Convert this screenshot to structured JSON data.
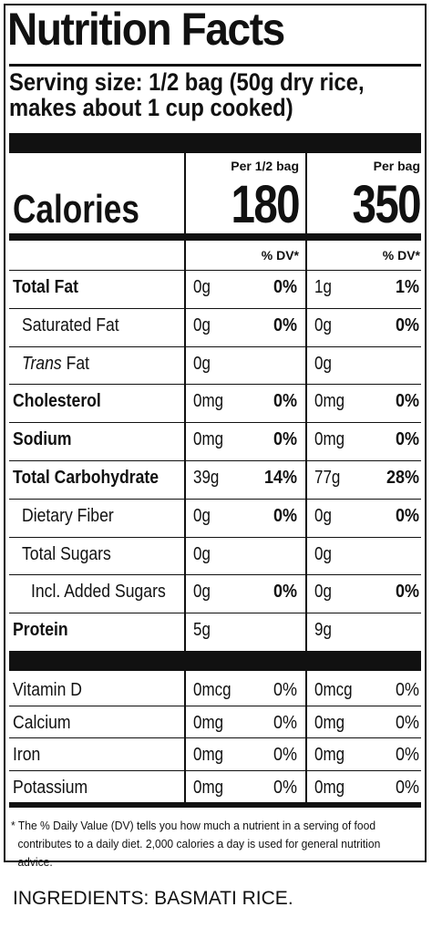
{
  "title": "Nutrition Facts",
  "serving_line1": "Serving size: 1/2 bag (50g dry rice,",
  "serving_line2": "makes about 1 cup cooked)",
  "columns": {
    "per_half_label": "Per 1/2 bag",
    "per_bag_label": "Per bag",
    "dv_label": "% DV*"
  },
  "calories": {
    "label": "Calories",
    "per_half": "180",
    "per_bag": "350"
  },
  "nutrients": [
    {
      "name": "Total Fat",
      "amt1": "0g",
      "dv1": "0%",
      "amt2": "1g",
      "dv2": "1%"
    },
    {
      "name": "Saturated Fat",
      "amt1": "0g",
      "dv1": "0%",
      "amt2": "0g",
      "dv2": "0%"
    },
    {
      "name_italic": "Trans",
      "name_rest": " Fat",
      "amt1": "0g",
      "dv1": "",
      "amt2": "0g",
      "dv2": ""
    },
    {
      "name": "Cholesterol",
      "amt1": "0mg",
      "dv1": "0%",
      "amt2": "0mg",
      "dv2": "0%"
    },
    {
      "name": "Sodium",
      "amt1": "0mg",
      "dv1": "0%",
      "amt2": "0mg",
      "dv2": "0%"
    },
    {
      "name": "Total Carbohydrate",
      "amt1": "39g",
      "dv1": "14%",
      "amt2": "77g",
      "dv2": "28%"
    },
    {
      "name": "Dietary Fiber",
      "amt1": "0g",
      "dv1": "0%",
      "amt2": "0g",
      "dv2": "0%"
    },
    {
      "name": "Total Sugars",
      "amt1": "0g",
      "dv1": "",
      "amt2": "0g",
      "dv2": ""
    },
    {
      "name": "Incl. Added Sugars",
      "amt1": "0g",
      "dv1": "0%",
      "amt2": "0g",
      "dv2": "0%"
    },
    {
      "name": "Protein",
      "amt1": "5g",
      "dv1": "",
      "amt2": "9g",
      "dv2": ""
    }
  ],
  "vitamins": [
    {
      "name": "Vitamin D",
      "amt1": "0mcg",
      "dv1": "0%",
      "amt2": "0mcg",
      "dv2": "0%"
    },
    {
      "name": "Calcium",
      "amt1": "0mg",
      "dv1": "0%",
      "amt2": "0mg",
      "dv2": "0%"
    },
    {
      "name": "Iron",
      "amt1": "0mg",
      "dv1": "0%",
      "amt2": "0mg",
      "dv2": "0%"
    },
    {
      "name": "Potassium",
      "amt1": "0mg",
      "dv1": "0%",
      "amt2": "0mg",
      "dv2": "0%"
    }
  ],
  "footnote_line1": "* The % Daily Value (DV) tells you how much a nutrient in a serving of food",
  "footnote_line2": "contributes to a daily diet. 2,000 calories a day is used for general nutrition advice.",
  "ingredients": "INGREDIENTS: BASMATI RICE."
}
